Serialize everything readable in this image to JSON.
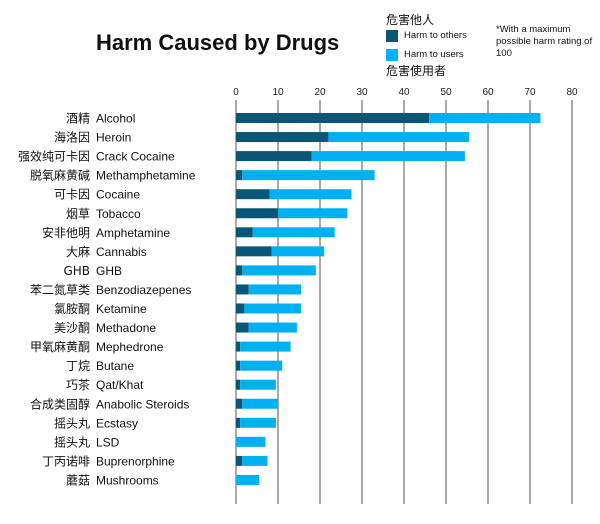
{
  "chart_data": {
    "type": "bar",
    "orientation": "horizontal",
    "stacked": true,
    "title": "Harm Caused by Drugs",
    "note": "*With a maximum possible harm rating of 100",
    "legend": {
      "placement": "top-right",
      "entries": [
        {
          "name_zh": "危害他人",
          "name": "Harm to others",
          "color": "#0a5676"
        },
        {
          "name_zh": "危害使用者",
          "name": "Harm to users",
          "color": "#00b0f0"
        }
      ]
    },
    "xlim": [
      0,
      80
    ],
    "xticks": [
      0,
      10,
      20,
      30,
      40,
      50,
      60,
      70,
      80
    ],
    "grid": true,
    "categories": [
      {
        "zh": "酒精",
        "en": "Alcohol"
      },
      {
        "zh": "海洛因",
        "en": "Heroin"
      },
      {
        "zh": "强效纯可卡因",
        "en": "Crack Cocaine"
      },
      {
        "zh": "脱氧麻黄碱",
        "en": "Methamphetamine"
      },
      {
        "zh": "可卡因",
        "en": "Cocaine"
      },
      {
        "zh": "烟草",
        "en": "Tobacco"
      },
      {
        "zh": "安非他明",
        "en": "Amphetamine"
      },
      {
        "zh": "大麻",
        "en": "Cannabis"
      },
      {
        "zh": "GHB",
        "en": "GHB"
      },
      {
        "zh": "苯二氮草类",
        "en": "Benzodiazepenes"
      },
      {
        "zh": "氯胺酮",
        "en": "Ketamine"
      },
      {
        "zh": "美沙酮",
        "en": "Methadone"
      },
      {
        "zh": "甲氧麻黄酮",
        "en": "Mephedrone"
      },
      {
        "zh": "丁烷",
        "en": "Butane"
      },
      {
        "zh": "巧茶",
        "en": "Qat/Khat"
      },
      {
        "zh": "合成类固醇",
        "en": "Anabolic Steroids"
      },
      {
        "zh": "摇头丸",
        "en": "Ecstasy"
      },
      {
        "zh": "摇头丸",
        "en": "LSD"
      },
      {
        "zh": "丁丙诺啡",
        "en": "Buprenorphine"
      },
      {
        "zh": "蘑菇",
        "en": "Mushrooms"
      }
    ],
    "series": [
      {
        "name": "Harm to others",
        "values": [
          46,
          22,
          18,
          1.5,
          8,
          10,
          4,
          8.5,
          1.5,
          3,
          2,
          3,
          1,
          1,
          1,
          1.5,
          1,
          0,
          1.5,
          0
        ]
      },
      {
        "name": "Harm to users",
        "values": [
          26.5,
          33.5,
          36.5,
          31.5,
          19.5,
          16.5,
          19.5,
          12.5,
          17.5,
          12.5,
          13.5,
          11.5,
          12,
          10,
          8.5,
          8.5,
          8.5,
          7,
          6,
          5.5
        ]
      }
    ]
  }
}
